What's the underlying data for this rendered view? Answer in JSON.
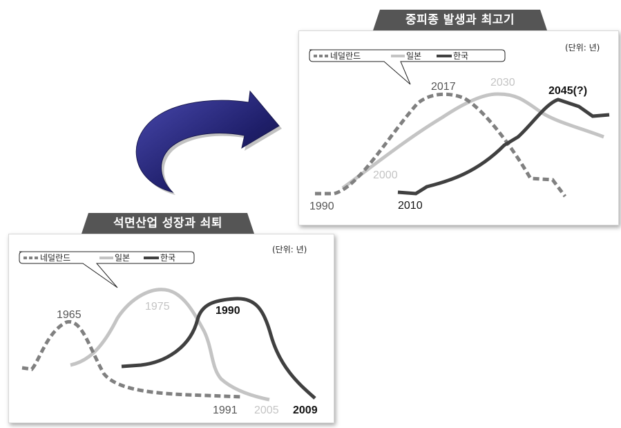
{
  "colors": {
    "netherlands": "#808080",
    "japan": "#c4c4c4",
    "korea": "#404040",
    "tab_bg": "#555555",
    "arrow": "#2b2b7a"
  },
  "legend": {
    "netherlands": "네덜란드",
    "japan": "일본",
    "korea": "한국"
  },
  "top_panel": {
    "title": "중피종 발생과 최고기",
    "unit": "(단위: 년)",
    "labels": {
      "nl_start": "1990",
      "nl_peak": "2017",
      "jp_start": "2000",
      "jp_peak": "2030",
      "kr_start": "2010",
      "kr_peak": "2045(?)"
    }
  },
  "bottom_panel": {
    "title": "석면산업 성장과 쇠퇴",
    "unit": "(단위: 년)",
    "labels": {
      "nl_peak": "1965",
      "nl_end": "1991",
      "jp_peak": "1975",
      "jp_end": "2005",
      "kr_peak": "1990",
      "kr_end": "2009"
    }
  },
  "chart_data": [
    {
      "type": "line",
      "title": "석면산업 성장과 쇠퇴",
      "unit": "(단위: 년)",
      "series": [
        {
          "name": "네덜란드",
          "peak": "1965",
          "end": "1991"
        },
        {
          "name": "일본",
          "peak": "1975",
          "end": "2005"
        },
        {
          "name": "한국",
          "peak": "1990",
          "end": "2009"
        }
      ]
    },
    {
      "type": "line",
      "title": "중피종 발생과 최고기",
      "unit": "(단위: 년)",
      "series": [
        {
          "name": "네덜란드",
          "start": "1990",
          "peak": "2017"
        },
        {
          "name": "일본",
          "start": "2000",
          "peak": "2030"
        },
        {
          "name": "한국",
          "start": "2010",
          "peak": "2045(?)"
        }
      ]
    }
  ]
}
